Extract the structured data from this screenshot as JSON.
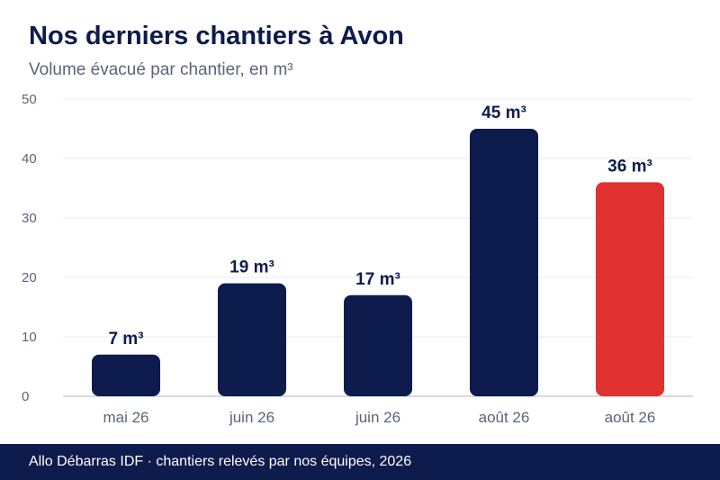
{
  "header": {
    "title": "Nos derniers chantiers à Avon",
    "subtitle": "Volume évacué par chantier, en m³"
  },
  "footer": {
    "text": "Allo Débarras IDF · chantiers relevés par nos équipes, 2026"
  },
  "colors": {
    "navy": "#0e1b4d",
    "highlight": "#e03131",
    "grid": "#e9ebf0",
    "axis_text": "#5a6478"
  },
  "chart_data": {
    "type": "bar",
    "categories": [
      "mai 26",
      "juin 26",
      "juin 26",
      "août 26",
      "août 26"
    ],
    "values": [
      7,
      19,
      17,
      45,
      36
    ],
    "data_labels": [
      "7 m³",
      "19 m³",
      "17 m³",
      "45 m³",
      "36 m³"
    ],
    "highlight_index": 4,
    "yticks": [
      "0",
      "10",
      "20",
      "30",
      "40",
      "50"
    ],
    "ylim": [
      0,
      50
    ],
    "xlabel": "",
    "ylabel": "",
    "grid": true,
    "legend": "none"
  }
}
